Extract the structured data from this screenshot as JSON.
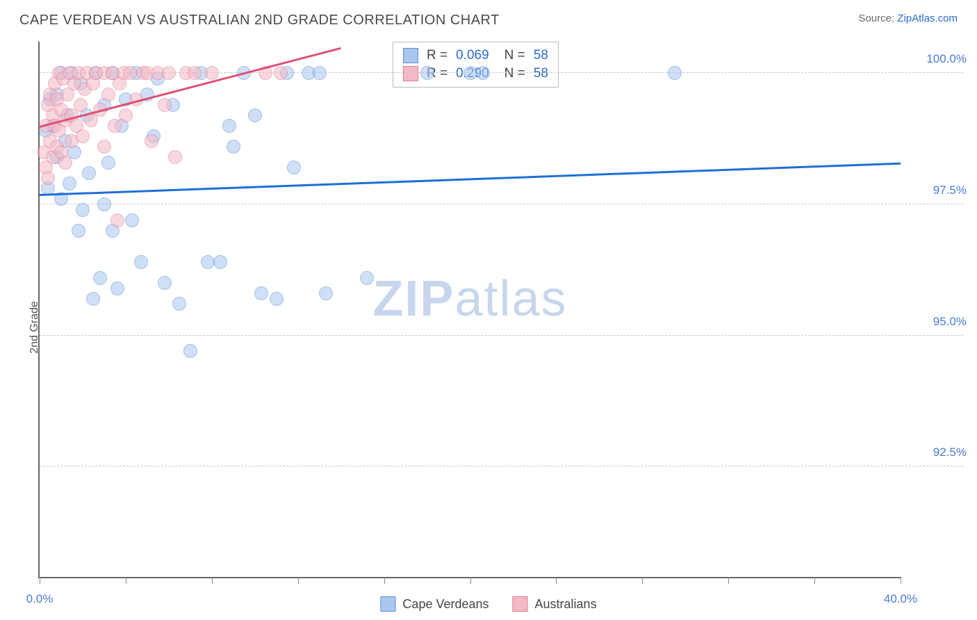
{
  "header": {
    "title": "CAPE VERDEAN VS AUSTRALIAN 2ND GRADE CORRELATION CHART",
    "source_prefix": "Source: ",
    "source_link": "ZipAtlas.com"
  },
  "axes": {
    "ylabel": "2nd Grade",
    "x_min": 0.0,
    "x_max": 40.0,
    "y_min": 90.4,
    "y_max": 100.6,
    "x_ticks": [
      0.0,
      4.0,
      8.0,
      12.0,
      16.0,
      20.0,
      24.0,
      28.0,
      32.0,
      36.0,
      40.0
    ],
    "x_tick_labels": {
      "0": "0.0%",
      "40": "40.0%"
    },
    "y_gridlines": [
      92.5,
      95.0,
      97.5,
      100.0
    ],
    "y_tick_labels": {
      "92.5": "92.5%",
      "95.0": "95.0%",
      "97.5": "97.5%",
      "100.0": "100.0%"
    }
  },
  "style": {
    "bg": "#ffffff",
    "grid_color": "#c8c8c8",
    "axis_color": "#666666",
    "tick_label_color": "#4a7bd0",
    "title_color": "#4a4a4a",
    "marker_radius": 10,
    "marker_opacity": 0.55,
    "trend_width": 3
  },
  "series": {
    "cape_verdeans": {
      "label": "Cape Verdeans",
      "fill": "#a9c6ef",
      "stroke": "#5b8fd6",
      "trend_color": "#1e6fd6",
      "R": "0.069",
      "N": "58",
      "trend": {
        "x1": 0.0,
        "y1": 97.7,
        "x2": 40.0,
        "y2": 98.3
      },
      "points": [
        [
          0.3,
          98.9
        ],
        [
          0.4,
          97.8
        ],
        [
          0.5,
          99.5
        ],
        [
          0.6,
          99.0
        ],
        [
          0.8,
          98.4
        ],
        [
          0.8,
          99.6
        ],
        [
          1.0,
          97.6
        ],
        [
          1.0,
          100.0
        ],
        [
          1.2,
          98.7
        ],
        [
          1.3,
          99.2
        ],
        [
          1.4,
          97.9
        ],
        [
          1.5,
          100.0
        ],
        [
          1.6,
          98.5
        ],
        [
          1.8,
          97.0
        ],
        [
          1.9,
          99.8
        ],
        [
          2.0,
          97.4
        ],
        [
          2.2,
          99.2
        ],
        [
          2.3,
          98.1
        ],
        [
          2.5,
          95.7
        ],
        [
          2.6,
          100.0
        ],
        [
          2.8,
          96.1
        ],
        [
          3.0,
          97.5
        ],
        [
          3.0,
          99.4
        ],
        [
          3.2,
          98.3
        ],
        [
          3.4,
          97.0
        ],
        [
          3.4,
          100.0
        ],
        [
          3.6,
          95.9
        ],
        [
          3.8,
          99.0
        ],
        [
          4.0,
          99.5
        ],
        [
          4.3,
          97.2
        ],
        [
          4.5,
          100.0
        ],
        [
          4.7,
          96.4
        ],
        [
          5.0,
          99.6
        ],
        [
          5.3,
          98.8
        ],
        [
          5.5,
          99.9
        ],
        [
          5.8,
          96.0
        ],
        [
          6.2,
          99.4
        ],
        [
          6.5,
          95.6
        ],
        [
          7.0,
          94.7
        ],
        [
          7.5,
          100.0
        ],
        [
          7.8,
          96.4
        ],
        [
          8.4,
          96.4
        ],
        [
          8.8,
          99.0
        ],
        [
          9.0,
          98.6
        ],
        [
          9.5,
          100.0
        ],
        [
          10.0,
          99.2
        ],
        [
          10.3,
          95.8
        ],
        [
          11.0,
          95.7
        ],
        [
          11.5,
          100.0
        ],
        [
          11.8,
          98.2
        ],
        [
          12.5,
          100.0
        ],
        [
          13.0,
          100.0
        ],
        [
          13.3,
          95.8
        ],
        [
          15.2,
          96.1
        ],
        [
          18.0,
          100.0
        ],
        [
          20.0,
          100.0
        ],
        [
          20.6,
          100.0
        ],
        [
          29.5,
          100.0
        ]
      ]
    },
    "australians": {
      "label": "Australians",
      "fill": "#f4b9c6",
      "stroke": "#e47a93",
      "trend_color": "#e05075",
      "R": "0.290",
      "N": "58",
      "trend": {
        "x1": 0.0,
        "y1": 99.0,
        "x2": 14.0,
        "y2": 100.5
      },
      "points": [
        [
          0.2,
          98.5
        ],
        [
          0.3,
          99.0
        ],
        [
          0.3,
          98.2
        ],
        [
          0.4,
          99.4
        ],
        [
          0.4,
          98.0
        ],
        [
          0.5,
          99.6
        ],
        [
          0.5,
          98.7
        ],
        [
          0.6,
          99.2
        ],
        [
          0.6,
          98.4
        ],
        [
          0.7,
          99.8
        ],
        [
          0.7,
          99.0
        ],
        [
          0.8,
          98.6
        ],
        [
          0.8,
          99.5
        ],
        [
          0.9,
          100.0
        ],
        [
          0.9,
          98.9
        ],
        [
          1.0,
          99.3
        ],
        [
          1.0,
          98.5
        ],
        [
          1.1,
          99.9
        ],
        [
          1.2,
          99.1
        ],
        [
          1.2,
          98.3
        ],
        [
          1.3,
          99.6
        ],
        [
          1.4,
          100.0
        ],
        [
          1.5,
          99.2
        ],
        [
          1.5,
          98.7
        ],
        [
          1.6,
          99.8
        ],
        [
          1.7,
          99.0
        ],
        [
          1.8,
          100.0
        ],
        [
          1.9,
          99.4
        ],
        [
          2.0,
          98.8
        ],
        [
          2.1,
          99.7
        ],
        [
          2.2,
          100.0
        ],
        [
          2.4,
          99.1
        ],
        [
          2.5,
          99.8
        ],
        [
          2.6,
          100.0
        ],
        [
          2.8,
          99.3
        ],
        [
          3.0,
          100.0
        ],
        [
          3.0,
          98.6
        ],
        [
          3.2,
          99.6
        ],
        [
          3.4,
          100.0
        ],
        [
          3.5,
          99.0
        ],
        [
          3.6,
          97.2
        ],
        [
          3.7,
          99.8
        ],
        [
          3.9,
          100.0
        ],
        [
          4.0,
          99.2
        ],
        [
          4.2,
          100.0
        ],
        [
          4.5,
          99.5
        ],
        [
          4.8,
          100.0
        ],
        [
          5.0,
          100.0
        ],
        [
          5.2,
          98.7
        ],
        [
          5.5,
          100.0
        ],
        [
          5.8,
          99.4
        ],
        [
          6.0,
          100.0
        ],
        [
          6.3,
          98.4
        ],
        [
          6.8,
          100.0
        ],
        [
          7.2,
          100.0
        ],
        [
          8.0,
          100.0
        ],
        [
          10.5,
          100.0
        ],
        [
          11.2,
          100.0
        ]
      ]
    }
  },
  "stats_box": {
    "rows": [
      {
        "swatch_fill": "#a9c6ef",
        "swatch_stroke": "#5b8fd6",
        "R_label": "R =",
        "R": "0.069",
        "N_label": "N =",
        "N": "58"
      },
      {
        "swatch_fill": "#f4b9c6",
        "swatch_stroke": "#e47a93",
        "R_label": "R =",
        "R": "0.290",
        "N_label": "N =",
        "N": "58"
      }
    ]
  },
  "watermark": {
    "z": "ZIP",
    "rest": "atlas"
  }
}
